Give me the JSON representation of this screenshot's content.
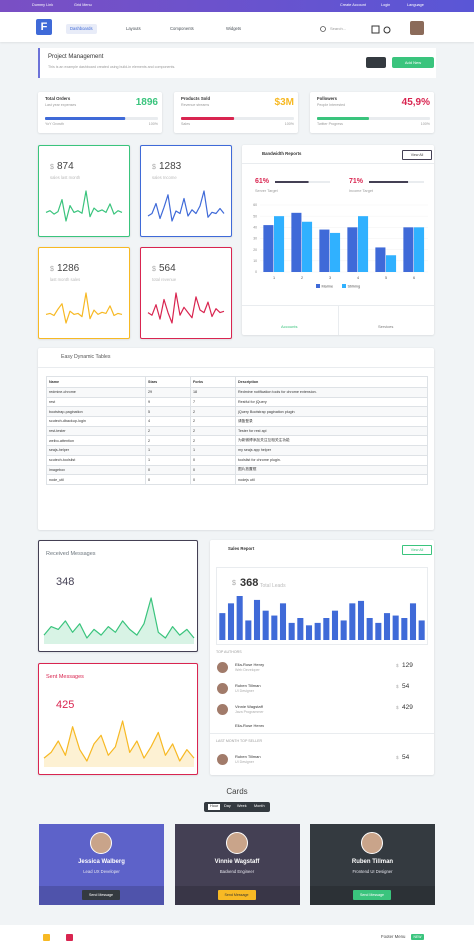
{
  "topbar": {
    "links": [
      "Dummy Link",
      "Grid Menu"
    ],
    "right": [
      "Create Account",
      "Login",
      "Language"
    ]
  },
  "nav": {
    "logo": "F",
    "items": [
      "Dashboards",
      "Layouts",
      "Components",
      "Widgets"
    ],
    "search": "Search..."
  },
  "header": {
    "title": "Project Management",
    "subtitle": "This is an example dashboard created using build-in elements and components.",
    "button": "Add New"
  },
  "progress_cards": [
    {
      "title": "Total Orders",
      "subtitle": "Last year expenses",
      "value": 1896,
      "color": "#3ac47d",
      "bar_color": "#3f6ad8",
      "progress": 71,
      "foot_left": "YoY Growth",
      "foot_right": "100%"
    },
    {
      "title": "Products Sold",
      "subtitle": "Revenue streams",
      "value": "$3M",
      "color": "#f7b924",
      "bar_color": "#d92550",
      "progress": 47,
      "foot_left": "Sales",
      "foot_right": "100%"
    },
    {
      "title": "Followers",
      "subtitle": "People Interested",
      "value": "45,9%",
      "color": "#d92550",
      "bar_color": "#3ac47d",
      "progress": 46,
      "foot_left": "Twitter Progress",
      "foot_right": "100%"
    }
  ],
  "stat_cards": [
    {
      "currency": "$",
      "value": 874,
      "label": "sales last month",
      "color": "#3ac47d",
      "values": [
        30,
        32,
        28,
        31,
        45,
        20,
        38,
        30,
        32,
        29,
        55,
        25,
        35,
        31,
        33,
        30,
        40,
        28,
        32,
        30
      ]
    },
    {
      "currency": "$",
      "value": 1283,
      "label": "sales Income",
      "color": "#3f6ad8",
      "values": [
        28,
        30,
        38,
        26,
        35,
        45,
        24,
        32,
        30,
        42,
        28,
        33,
        30,
        36,
        48,
        27,
        31,
        30,
        34,
        30
      ]
    },
    {
      "currency": "$",
      "value": 1286,
      "label": "last month sales",
      "color": "#f7b924",
      "values": [
        30,
        31,
        29,
        35,
        40,
        22,
        33,
        30,
        31,
        28,
        50,
        26,
        34,
        30,
        32,
        31,
        38,
        29,
        31,
        30
      ]
    },
    {
      "currency": "$",
      "value": 564,
      "label": "total revenue",
      "color": "#d92550",
      "values": [
        30,
        28,
        36,
        25,
        40,
        30,
        22,
        45,
        28,
        34,
        30,
        26,
        42,
        32,
        30,
        38,
        27,
        33,
        30,
        31
      ]
    }
  ],
  "bandwidth": {
    "title": "Bandwidth Reports",
    "button": "View All",
    "targets": [
      {
        "value": 61,
        "value_label": "61%",
        "label": "Server Target",
        "color": "#d92550"
      },
      {
        "value": 71,
        "value_label": "71%",
        "label": "Income Target",
        "color": "#d92550"
      }
    ],
    "chart": {
      "type": "bar",
      "categories": [
        "1",
        "2",
        "3",
        "4",
        "5",
        "6"
      ],
      "series": [
        {
          "name": "Marine",
          "color": "#3f6ad8",
          "values": [
            42,
            53,
            38,
            40,
            22,
            40
          ]
        },
        {
          "name": "Striking",
          "color": "#30b1ff",
          "values": [
            50,
            45,
            35,
            50,
            15,
            40
          ]
        }
      ],
      "ylim": [
        0,
        60
      ],
      "yticks": [
        0,
        10,
        20,
        30,
        40,
        50,
        60
      ]
    },
    "tabs": [
      "Accounts",
      "Services"
    ]
  },
  "table": {
    "title": "Easy Dynamic Tables",
    "columns": [
      "Name",
      "Stars",
      "Forks",
      "Description"
    ],
    "rows": [
      [
        "redmine-chrome",
        29,
        18,
        "Redmine notification tools for chrome extension."
      ],
      [
        "rest",
        9,
        7,
        "Restful for jQuery"
      ],
      [
        "bootstrap-pagination",
        5,
        2,
        "jQuery Bootstrap pagination plugin"
      ],
      [
        "scutech-dbackup-login",
        4,
        2,
        "请备登录"
      ],
      [
        "rest-tester",
        2,
        2,
        "Tester for rest api"
      ],
      [
        "weibo-attention",
        2,
        2,
        "为新微博添加关注互相关注功能"
      ],
      [
        "seajs-helper",
        1,
        1,
        "my seajs app helper"
      ],
      [
        "scutech-toolslist",
        1,
        0,
        "toolslist for chrome plugin."
      ],
      [
        "imagebox",
        0,
        0,
        "图片放置框"
      ],
      [
        "node_util",
        0,
        0,
        "nodejs util"
      ]
    ]
  },
  "messages": [
    {
      "title": "Received Messages",
      "value": 348,
      "color": "#3ac47d",
      "title_color": "#6c757d",
      "values": [
        20,
        26,
        24,
        30,
        22,
        28,
        18,
        24,
        20,
        26,
        22,
        30,
        24,
        20,
        28,
        46,
        22,
        18,
        26,
        20,
        24,
        18
      ]
    },
    {
      "title": "Sent Messages",
      "value": 425,
      "color": "#f7b924",
      "title_color": "#d92550",
      "values": [
        18,
        22,
        30,
        20,
        40,
        24,
        16,
        28,
        34,
        20,
        26,
        44,
        22,
        30,
        18,
        26,
        36,
        20,
        28,
        16,
        24,
        18
      ]
    }
  ],
  "sales_report": {
    "title": "Sales Report",
    "button": "View All",
    "currency": "$",
    "value": 368,
    "label": "Total Leads",
    "bar_color": "#3f6ad8",
    "bars": [
      55,
      75,
      90,
      40,
      82,
      60,
      50,
      75,
      35,
      45,
      30,
      35,
      45,
      60,
      40,
      75,
      80,
      45,
      35,
      55,
      50,
      45,
      75,
      40
    ],
    "authors_label": "TOP AUTHORS",
    "authors": [
      {
        "name": "Ella-Rose Henry",
        "role": "Web Developer",
        "currency": "$",
        "amount": 129
      },
      {
        "name": "Ruben Tillman",
        "role": "UI Designer",
        "currency": "$",
        "amount": 54
      },
      {
        "name": "Vinnie Wagstaff",
        "role": "Java Programmer",
        "currency": "$",
        "amount": 429
      },
      {
        "name": "Ella-Rose Henry",
        "role": "Web Developer",
        "currency": "$",
        "amount": 129
      }
    ],
    "seller_label": "LAST MONTH TOP SELLER",
    "seller": {
      "name": "Ruben Tillman",
      "role": "UI Designer",
      "currency": "$",
      "amount": 54
    }
  },
  "cards": {
    "title": "Cards",
    "tabs": [
      "Hour",
      "Day",
      "Week",
      "Month"
    ],
    "profiles": [
      {
        "name": "Jessica Walberg",
        "role": "Lead UX Developer",
        "button": "Send Message",
        "color": "#5d62c9",
        "button_color": "#343a40"
      },
      {
        "name": "Vinnie Wagstaff",
        "role": "Backend Engineer",
        "button": "Send Message",
        "color": "#444054",
        "button_color": "#f7b924"
      },
      {
        "name": "Ruben Tillman",
        "role": "Frontend UI Designer",
        "button": "Send Message",
        "color": "#343a40",
        "button_color": "#3ac47d"
      }
    ]
  },
  "footer": {
    "menu": "Footer Menu",
    "badge": "NEW"
  }
}
